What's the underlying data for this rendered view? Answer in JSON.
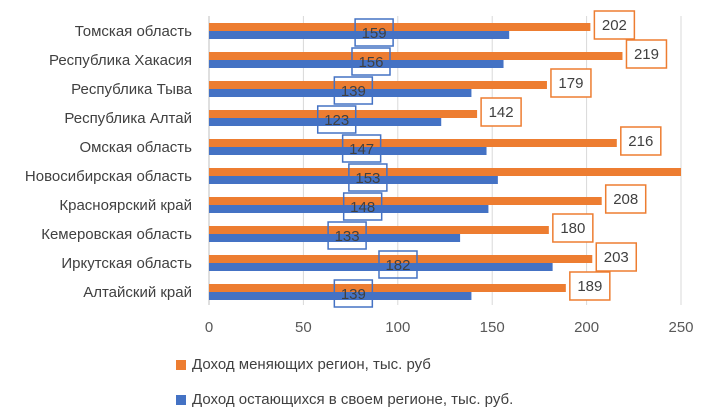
{
  "chart_data": {
    "type": "bar",
    "orientation": "horizontal",
    "categories": [
      "Томская область",
      "Республика Хакасия",
      "Республика Тыва",
      "Республика Алтай",
      "Омская область",
      "Новосибирская область",
      "Красноярский край",
      "Кемеровская область",
      "Иркутская область",
      "Алтайский край"
    ],
    "series": [
      {
        "name": "Доход меняющих регион, тыс. руб",
        "color": "#ED7D31",
        "values": [
          202,
          219,
          179,
          142,
          216,
          250,
          208,
          180,
          203,
          189
        ],
        "labels": [
          "202",
          "219",
          "179",
          "142",
          "216",
          "",
          "208",
          "180",
          "203",
          "189"
        ]
      },
      {
        "name": "Доход остающихся в своем регионе, тыс. руб.",
        "color": "#4472C4",
        "values": [
          159,
          156,
          139,
          123,
          147,
          153,
          148,
          133,
          182,
          139
        ],
        "labels": [
          "159",
          "156",
          "139",
          "123",
          "147",
          "153",
          "148",
          "133",
          "182",
          "139"
        ]
      }
    ],
    "xlim": [
      0,
      250
    ],
    "x_ticks": [
      0,
      50,
      100,
      150,
      200,
      250
    ],
    "grid": true,
    "legend_position": "bottom",
    "orange_label_border": "#ED7D31",
    "blue_label_border": "#4472C4"
  }
}
